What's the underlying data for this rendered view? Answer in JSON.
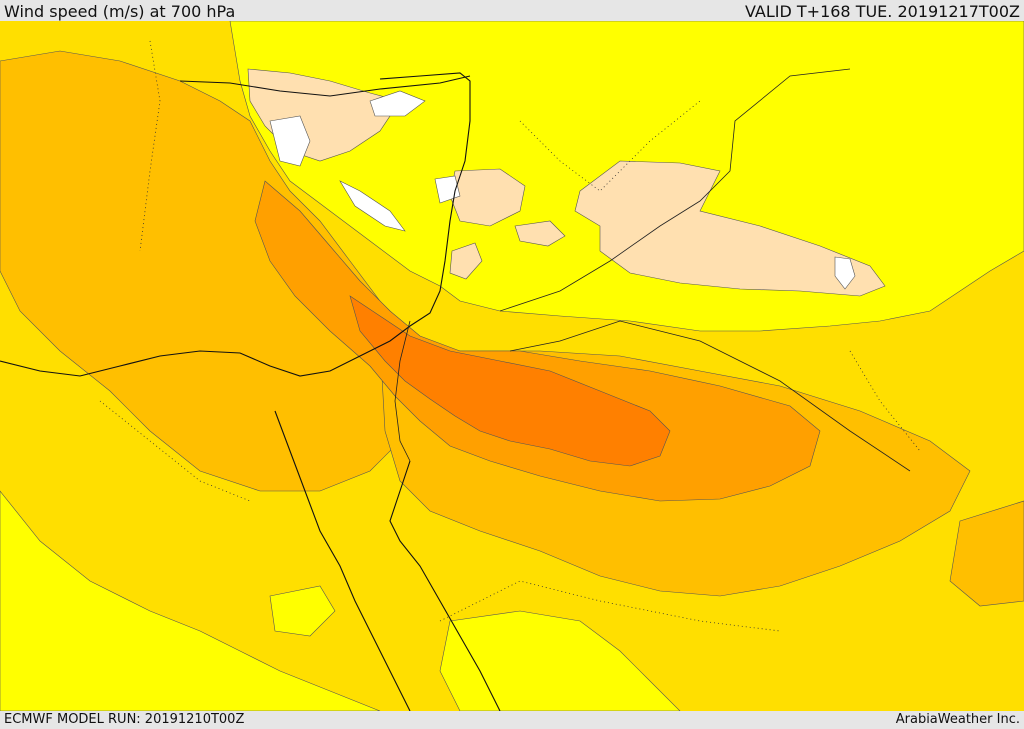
{
  "header": {
    "title": "Wind speed (m/s) at 700 hPa",
    "valid": "VALID T+168 TUE. 20191217T00Z"
  },
  "footer": {
    "model_run": "ECMWF MODEL RUN: 20191210T00Z",
    "brand": "ArabiaWeather Inc."
  },
  "palette": {
    "white": "#ffffff",
    "pale": "#ffe0b0",
    "yellow": "#ffff00",
    "gold": "#ffdf00",
    "amber": "#ffbf00",
    "light_orange": "#ffa000",
    "orange": "#ff8000",
    "boundary": "#222222"
  }
}
